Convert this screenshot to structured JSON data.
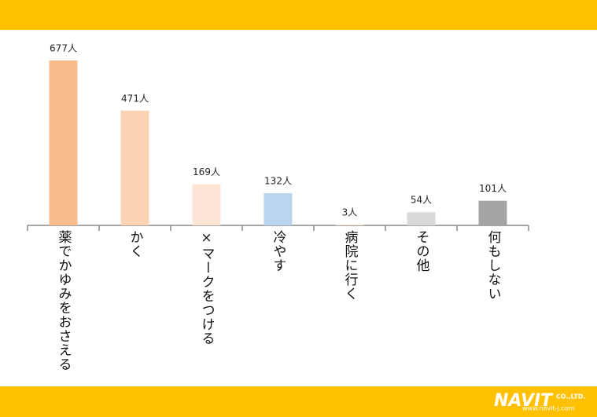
{
  "chart_data": {
    "type": "bar",
    "categories": [
      "薬でかゆみをおさえる",
      "かく",
      "×マークをつける",
      "冷やす",
      "病院に行く",
      "その他",
      "何もしない"
    ],
    "values": [
      677,
      471,
      169,
      132,
      3,
      54,
      101
    ],
    "value_labels": [
      "677人",
      "471人",
      "169人",
      "132人",
      "3人",
      "54人",
      "101人"
    ],
    "colors": [
      "#f8bc8e",
      "#fad3b2",
      "#fde5d6",
      "#bcd5ee",
      "#f4e0d0",
      "#d9d9d9",
      "#a5a3a3"
    ]
  },
  "footer": {
    "brand": "NAVIT",
    "brand_suffix": "CO.,LTD.",
    "url": "www.navit-j.com"
  }
}
